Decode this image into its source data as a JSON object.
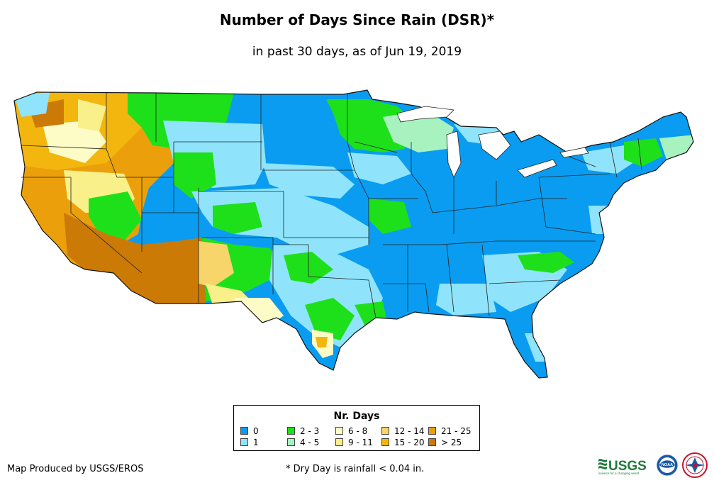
{
  "title": "Number of Days Since Rain (DSR)*",
  "subtitle": "in past 30 days, as of Jun 19, 2019",
  "legend": {
    "title": "Nr. Days",
    "items": [
      {
        "label": "0",
        "color": "#0a9cf0"
      },
      {
        "label": "1",
        "color": "#8fe4fb"
      },
      {
        "label": "2 - 3",
        "color": "#1ee01a"
      },
      {
        "label": "4 - 5",
        "color": "#a8f2c0"
      },
      {
        "label": "6 - 8",
        "color": "#fdfbc6"
      },
      {
        "label": "9 - 11",
        "color": "#f9f08a"
      },
      {
        "label": "12 - 14",
        "color": "#f7d56a"
      },
      {
        "label": "15 - 20",
        "color": "#f2b60e"
      },
      {
        "label": "21 - 25",
        "color": "#eba00b"
      },
      {
        "label": "> 25",
        "color": "#cc7a06"
      }
    ]
  },
  "credit": "Map Produced by USGS/EROS",
  "footnote": "* Dry Day is rainfall < 0.04 in.",
  "logos": {
    "usgs_text": "USGS",
    "usgs_tagline": "science for a changing world",
    "noaa_text": "NOAA"
  }
}
